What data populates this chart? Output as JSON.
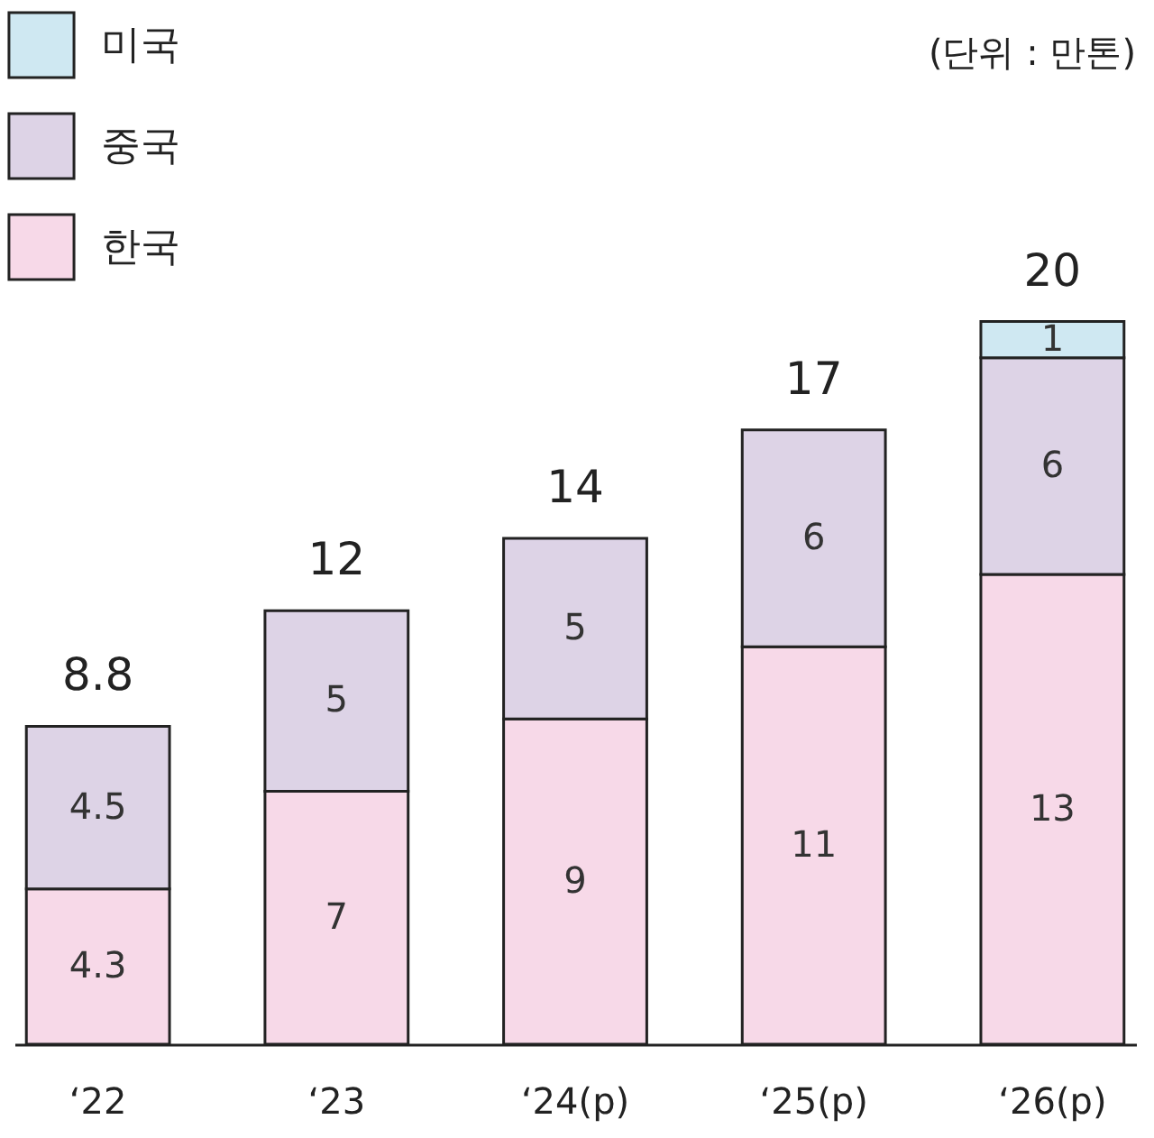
{
  "chart_data": {
    "type": "bar",
    "stacked": true,
    "categories": [
      "‘22",
      "‘23",
      "‘24(p)",
      "‘25(p)",
      "‘26(p)"
    ],
    "series": [
      {
        "name": "한국",
        "color": "#f7d9e8",
        "values": [
          4.3,
          7,
          9,
          11,
          13
        ]
      },
      {
        "name": "중국",
        "color": "#ddd3e6",
        "values": [
          4.5,
          5,
          5,
          6,
          6
        ]
      },
      {
        "name": "미국",
        "color": "#cfe8f2",
        "values": [
          null,
          null,
          null,
          null,
          1
        ]
      }
    ],
    "totals": [
      "8.8",
      "12",
      "14",
      "17",
      "20"
    ],
    "data_labels": true,
    "legend": "top left",
    "annotations": [
      "(단위 : 만톤)"
    ]
  }
}
